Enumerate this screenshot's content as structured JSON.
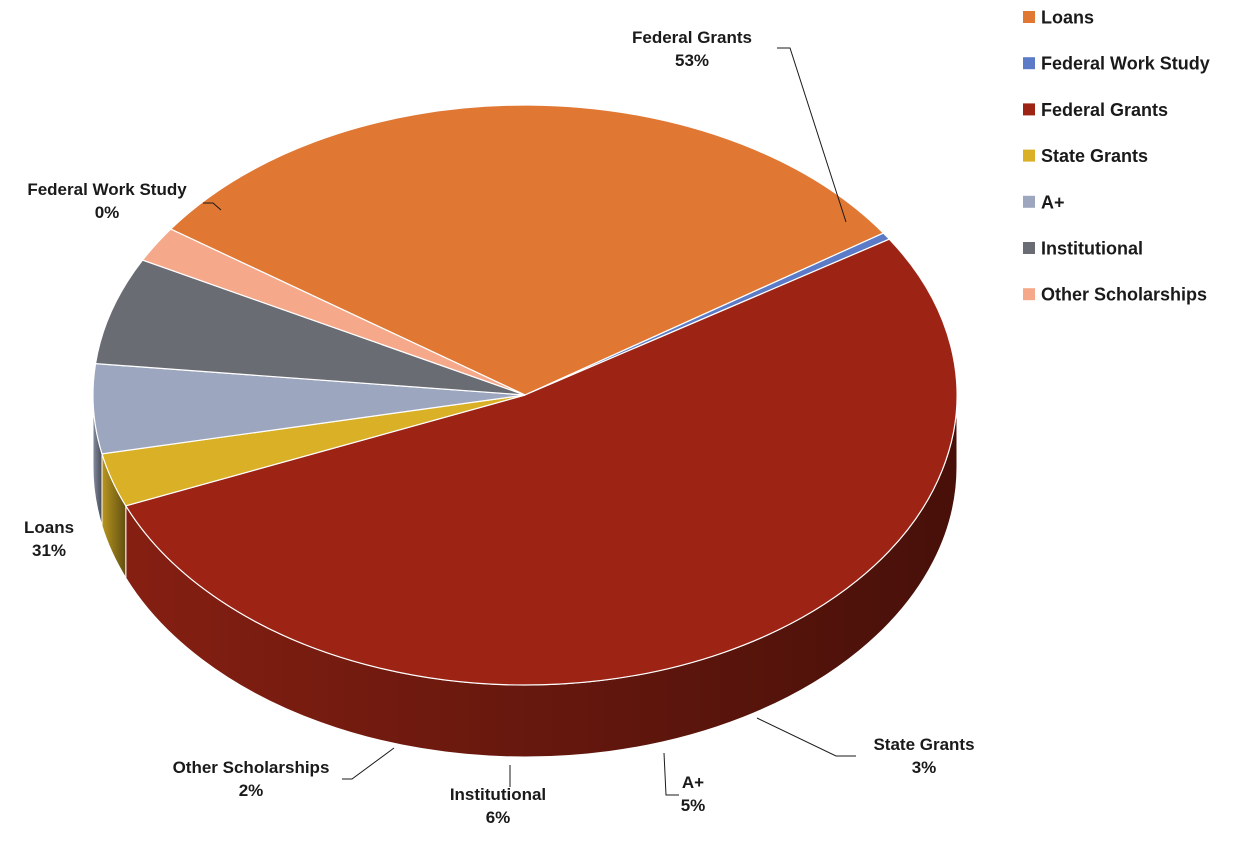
{
  "chart_data": {
    "type": "pie",
    "style": "3d",
    "title": "",
    "series": [
      {
        "name": "Loans",
        "value": 31,
        "label": "31%",
        "color": "#E07733"
      },
      {
        "name": "Federal Work Study",
        "value": 0.4,
        "label": "0%",
        "color": "#5B7BC8"
      },
      {
        "name": "Federal Grants",
        "value": 53,
        "label": "53%",
        "color": "#9D2415"
      },
      {
        "name": "State Grants",
        "value": 3,
        "label": "3%",
        "color": "#D9B026"
      },
      {
        "name": "A+",
        "value": 5,
        "label": "5%",
        "color": "#9DA6BF"
      },
      {
        "name": "Institutional",
        "value": 6,
        "label": "6%",
        "color": "#6A6C74"
      },
      {
        "name": "Other Scholarships",
        "value": 2,
        "label": "2%",
        "color": "#F5A98A"
      }
    ],
    "legend": {
      "position": "top-right",
      "items": [
        "Loans",
        "Federal Work Study",
        "Federal Grants",
        "State Grants",
        "A+",
        "Institutional",
        "Other Scholarships"
      ]
    }
  }
}
